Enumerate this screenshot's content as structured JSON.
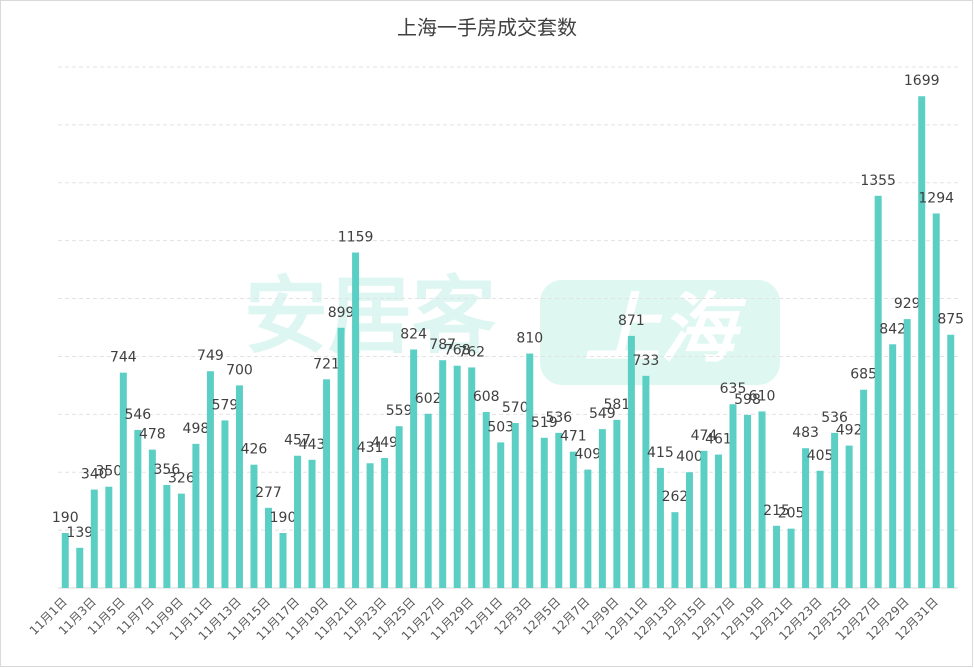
{
  "chart_data": {
    "type": "bar",
    "title": "上海一手房成交套数",
    "watermark": [
      "安居客",
      "上海"
    ],
    "categories": [
      "11月1日",
      null,
      "11月3日",
      null,
      "11月5日",
      null,
      "11月7日",
      null,
      "11月9日",
      null,
      "11月11日",
      null,
      "11月13日",
      null,
      "11月15日",
      null,
      "11月17日",
      null,
      "11月19日",
      null,
      "11月21日",
      null,
      "11月23日",
      null,
      "11月25日",
      null,
      "11月27日",
      null,
      "11月29日",
      null,
      "12月1日",
      null,
      "12月3日",
      null,
      "12月5日",
      null,
      "12月7日",
      null,
      "12月9日",
      null,
      "12月11日",
      null,
      "12月13日",
      null,
      "12月15日",
      null,
      "12月17日",
      null,
      "12月19日",
      null,
      "12月21日",
      null,
      "12月23日",
      null,
      "12月25日",
      null,
      "12月27日",
      null,
      "12月29日",
      null,
      "12月31日",
      null
    ],
    "values": [
      190,
      139,
      340,
      350,
      744,
      546,
      478,
      356,
      326,
      498,
      749,
      579,
      700,
      426,
      277,
      190,
      457,
      443,
      721,
      899,
      1159,
      431,
      449,
      559,
      824,
      602,
      787,
      768,
      762,
      608,
      503,
      570,
      810,
      519,
      536,
      471,
      409,
      549,
      581,
      871,
      733,
      415,
      262,
      400,
      474,
      461,
      635,
      598,
      610,
      215,
      205,
      483,
      405,
      536,
      492,
      685,
      1355,
      842,
      929,
      1699,
      1294,
      875
    ],
    "color": "#5ccfc5",
    "ylim": [
      0,
      1800
    ],
    "yticks": [
      0,
      200,
      400,
      600,
      800,
      1000,
      1200,
      1400,
      1600,
      1800
    ],
    "grid": true
  }
}
